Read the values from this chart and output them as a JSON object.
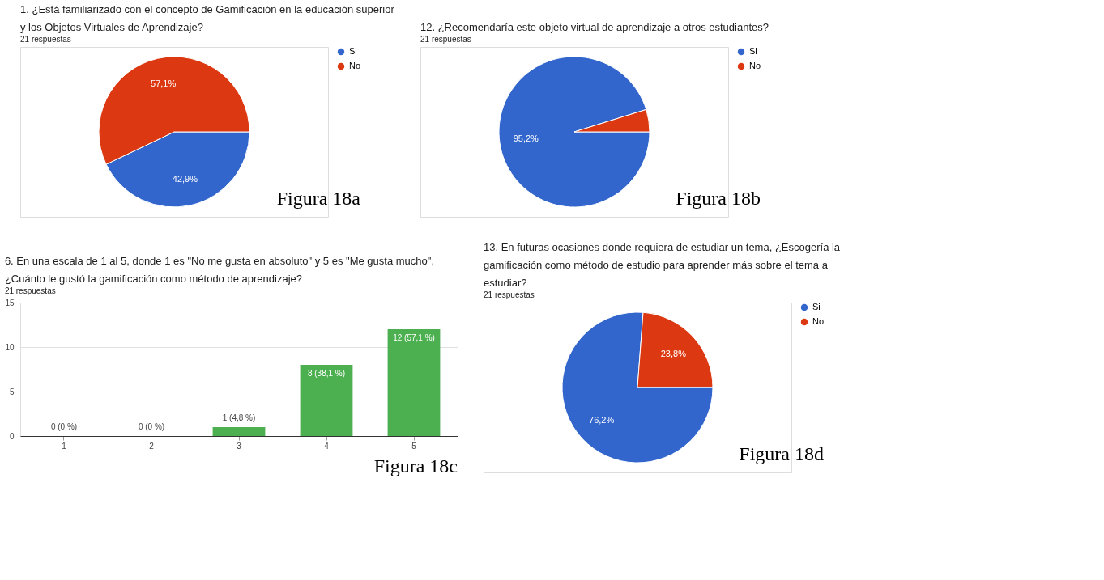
{
  "chart_data": [
    {
      "type": "pie",
      "title": "1. ¿Está familiarizado con el concepto de Gamificación en la educación súperior y los Objetos Virtuales de Aprendizaje?",
      "subtitle": "21 respuestas",
      "categories": [
        "Si",
        "No"
      ],
      "values": [
        42.9,
        57.1
      ],
      "colors": [
        "#3366cc",
        "#dc3912"
      ],
      "value_labels": [
        "42,9%",
        "57,1%"
      ],
      "legend": "top right",
      "annotations": [
        "Figura 18a"
      ]
    },
    {
      "type": "pie",
      "title": "12. ¿Recomendaría este objeto virtual de aprendizaje a otros estudiantes?",
      "subtitle": "21 respuestas",
      "categories": [
        "Si",
        "No"
      ],
      "values": [
        95.2,
        4.8
      ],
      "colors": [
        "#3366cc",
        "#dc3912"
      ],
      "value_labels": [
        "95,2%",
        null
      ],
      "legend": "top right",
      "annotations": [
        "Figura 18b"
      ]
    },
    {
      "type": "bar",
      "title": "6. En una escala de 1 al 5, donde 1 es \"No me gusta en absoluto\" y 5 es \"Me gusta mucho\", ¿Cuánto le gustó la gamificación como método de aprendizaje?",
      "subtitle": "21 respuestas",
      "categories": [
        "1",
        "2",
        "3",
        "4",
        "5"
      ],
      "values": [
        0,
        0,
        1,
        8,
        12
      ],
      "color": "#4caf50",
      "value_labels": [
        "0 (0 %)",
        "0 (0 %)",
        "1 (4,8 %)",
        "8 (38,1 %)",
        "12 (57,1 %)"
      ],
      "ylim": [
        0,
        15
      ],
      "yticks": [
        0,
        5,
        10,
        15
      ],
      "grid": "y",
      "annotations": [
        "Figura 18c"
      ]
    },
    {
      "type": "pie",
      "title": "13. En futuras ocasiones donde requiera de estudiar un tema, ¿Escogería la gamificación como método   de estudio para aprender más sobre el tema a estudiar?",
      "subtitle": "21 respuestas",
      "categories": [
        "Si",
        "No"
      ],
      "values": [
        76.2,
        23.8
      ],
      "colors": [
        "#3366cc",
        "#dc3912"
      ],
      "value_labels": [
        "76,2%",
        "23,8%"
      ],
      "legend": "top right",
      "annotations": [
        "Figura 18d"
      ]
    }
  ]
}
